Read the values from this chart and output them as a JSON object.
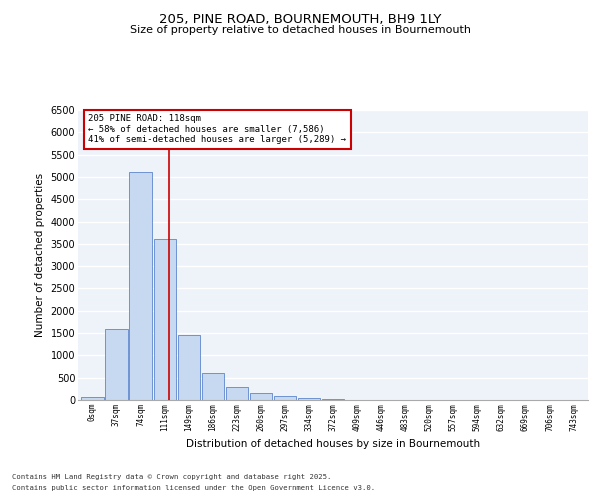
{
  "title1": "205, PINE ROAD, BOURNEMOUTH, BH9 1LY",
  "title2": "Size of property relative to detached houses in Bournemouth",
  "xlabel": "Distribution of detached houses by size in Bournemouth",
  "ylabel": "Number of detached properties",
  "bin_labels": [
    "0sqm",
    "37sqm",
    "74sqm",
    "111sqm",
    "149sqm",
    "186sqm",
    "223sqm",
    "260sqm",
    "297sqm",
    "334sqm",
    "372sqm",
    "409sqm",
    "446sqm",
    "483sqm",
    "520sqm",
    "557sqm",
    "594sqm",
    "632sqm",
    "669sqm",
    "706sqm",
    "743sqm"
  ],
  "bar_values": [
    70,
    1600,
    5100,
    3600,
    1450,
    600,
    300,
    150,
    100,
    50,
    12,
    5,
    5,
    3,
    2,
    1,
    1,
    1,
    0,
    0,
    0
  ],
  "bar_color": "#c6d9f0",
  "bar_edge_color": "#4472c4",
  "background_color": "#eef2f9",
  "grid_color": "#ffffff",
  "vline_x": 3.18,
  "vline_color": "#cc0000",
  "annotation_text": "205 PINE ROAD: 118sqm\n← 58% of detached houses are smaller (7,586)\n41% of semi-detached houses are larger (5,289) →",
  "annotation_box_color": "#cc0000",
  "ylim": [
    0,
    6500
  ],
  "yticks": [
    0,
    500,
    1000,
    1500,
    2000,
    2500,
    3000,
    3500,
    4000,
    4500,
    5000,
    5500,
    6000,
    6500
  ],
  "footer1": "Contains HM Land Registry data © Crown copyright and database right 2025.",
  "footer2": "Contains public sector information licensed under the Open Government Licence v3.0."
}
